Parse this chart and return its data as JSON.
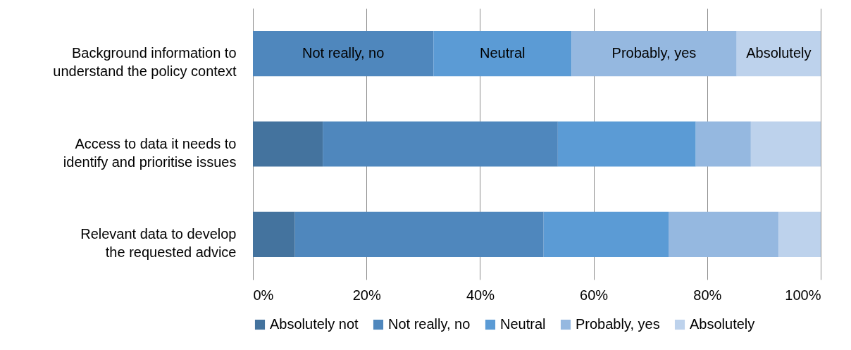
{
  "chart_data": {
    "type": "bar",
    "orientation": "horizontal",
    "stacked": true,
    "categories": [
      "Background information to understand the policy context",
      "Access to data it needs to identify and prioritise issues",
      "Relevant data to develop the requested advice"
    ],
    "series": [
      {
        "name": "Absolutely not",
        "color": "#44739e",
        "values": [
          0,
          12.3,
          7.4
        ]
      },
      {
        "name": "Not really, no",
        "color": "#4f87bd",
        "values": [
          31.8,
          41.4,
          43.8
        ]
      },
      {
        "name": "Neutral",
        "color": "#5b9bd5",
        "values": [
          24.3,
          24.3,
          22.0
        ]
      },
      {
        "name": "Probably, yes",
        "color": "#95b8e0",
        "values": [
          29.1,
          9.7,
          19.4
        ]
      },
      {
        "name": "Absolutely",
        "color": "#bdd2ec",
        "values": [
          14.8,
          12.3,
          7.4
        ]
      }
    ],
    "xlim": [
      0,
      100
    ],
    "xticks": [
      {
        "value": 0,
        "label": "0%"
      },
      {
        "value": 20,
        "label": "20%"
      },
      {
        "value": 40,
        "label": "40%"
      },
      {
        "value": 60,
        "label": "60%"
      },
      {
        "value": 80,
        "label": "80%"
      },
      {
        "value": 100,
        "label": "100%"
      }
    ],
    "annotations": [
      "Not really, no",
      "Neutral",
      "Probably, yes",
      "Absolutely"
    ],
    "grid": "x",
    "legend": "bottom"
  }
}
